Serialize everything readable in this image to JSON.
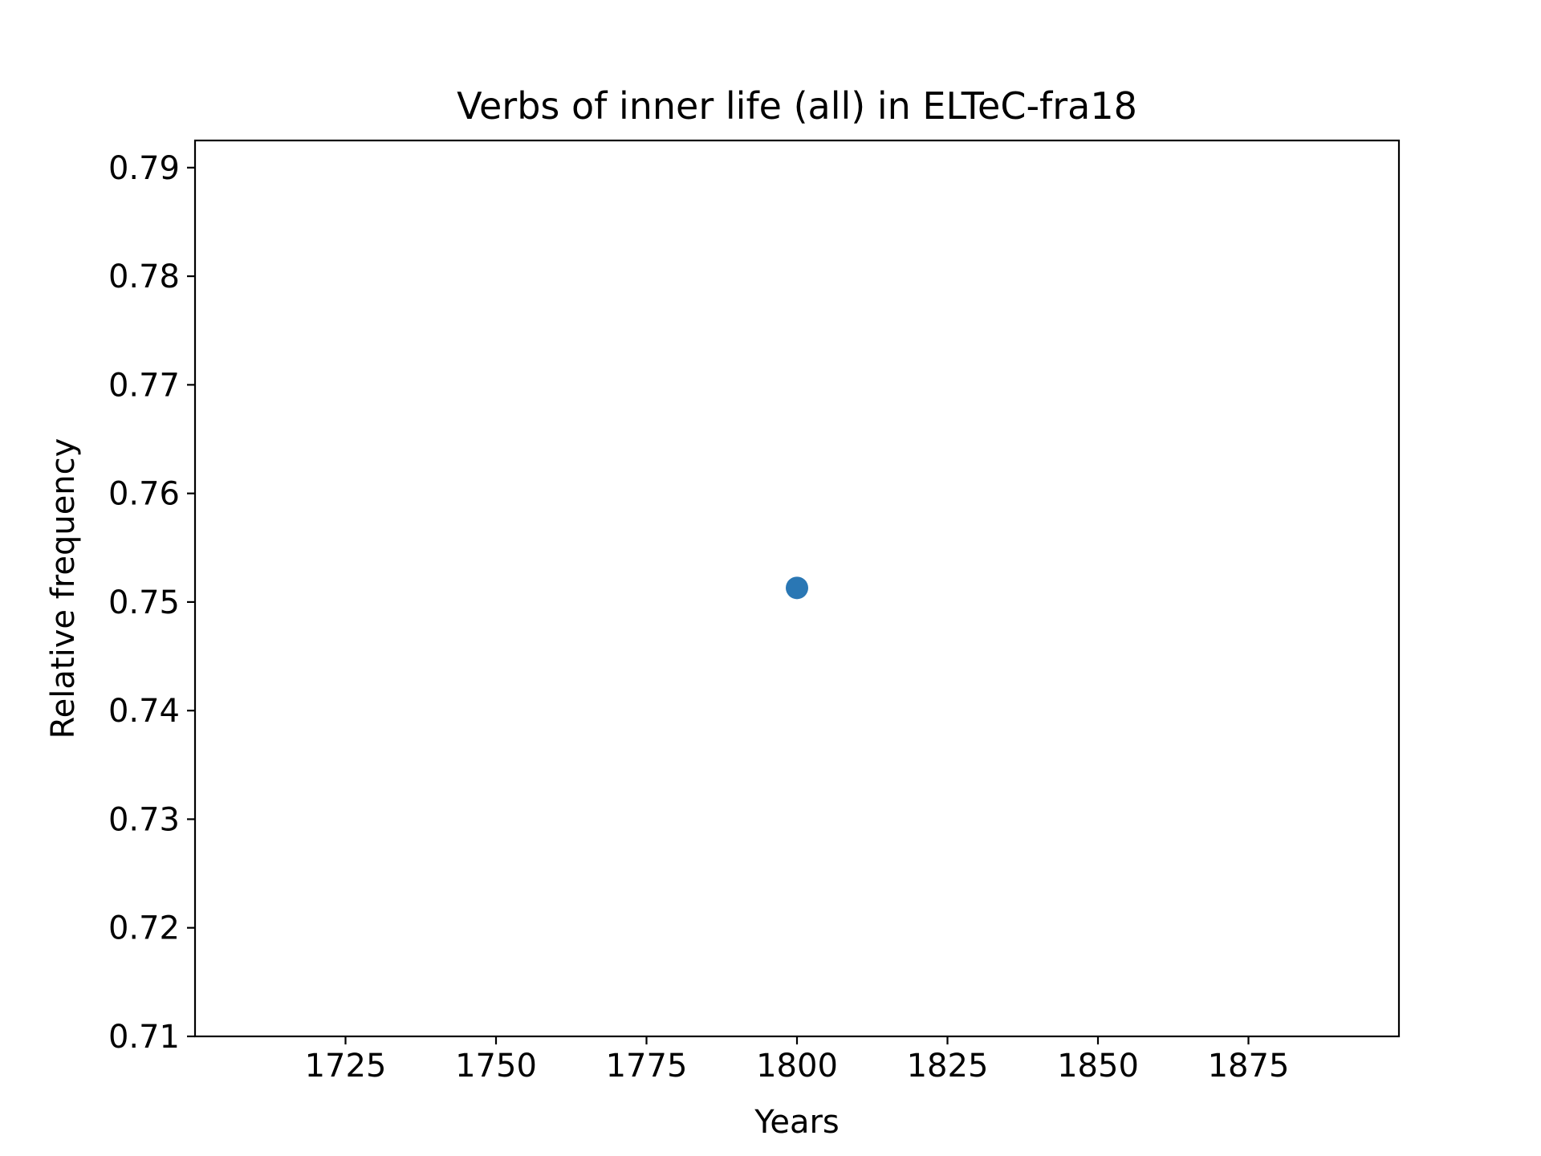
{
  "chart_data": {
    "type": "scatter",
    "title": "Verbs of inner life (all) in ELTeC-fra18",
    "xlabel": "Years",
    "ylabel": "Relative frequency",
    "xlim": [
      1700,
      1900
    ],
    "ylim": [
      0.71,
      0.7925
    ],
    "xticks": [
      1725,
      1750,
      1775,
      1800,
      1825,
      1850,
      1875
    ],
    "xtick_labels": [
      "1725",
      "1750",
      "1775",
      "1800",
      "1825",
      "1850",
      "1875"
    ],
    "yticks": [
      0.71,
      0.72,
      0.73,
      0.74,
      0.75,
      0.76,
      0.77,
      0.78,
      0.79
    ],
    "ytick_labels": [
      "0.71",
      "0.72",
      "0.73",
      "0.74",
      "0.75",
      "0.76",
      "0.77",
      "0.78",
      "0.79"
    ],
    "grid": false,
    "legend": false,
    "series": [
      {
        "color": "#2a77b4",
        "points": [
          {
            "x": 1800,
            "y": 0.7513
          }
        ]
      }
    ]
  }
}
